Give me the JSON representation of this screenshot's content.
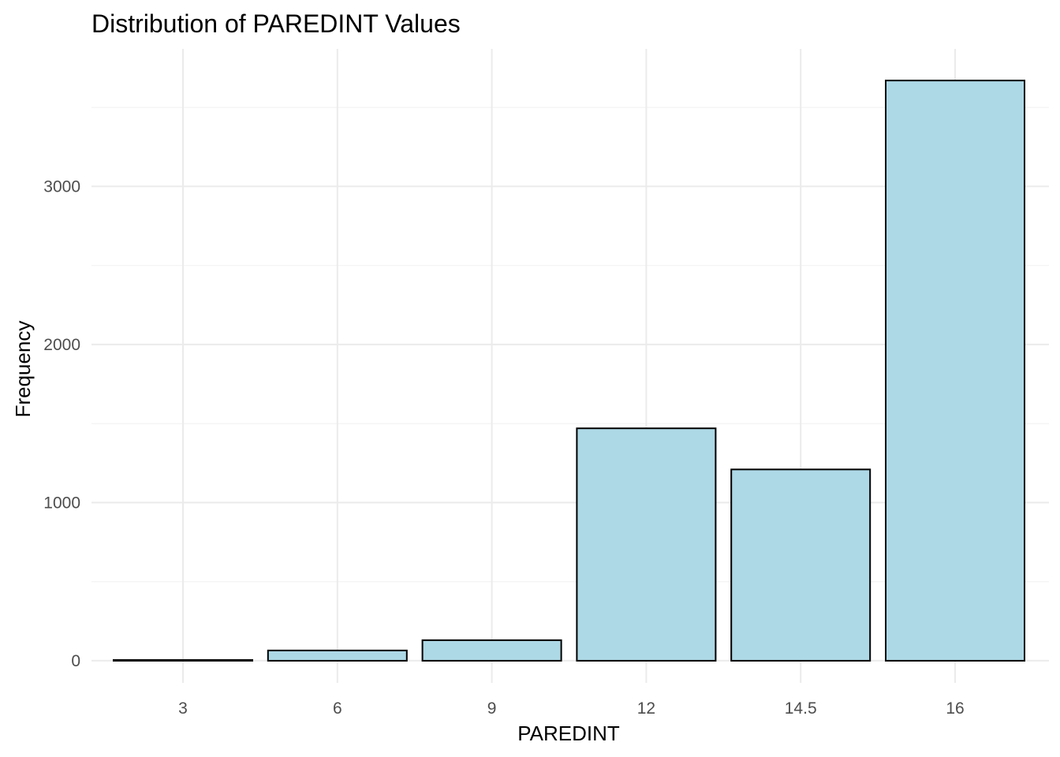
{
  "chart_data": {
    "type": "bar",
    "title": "Distribution of PAREDINT Values",
    "xlabel": "PAREDINT",
    "ylabel": "Frequency",
    "categories": [
      "3",
      "6",
      "9",
      "12",
      "14.5",
      "16"
    ],
    "values": [
      5,
      65,
      130,
      1470,
      1210,
      3670
    ],
    "ylim": [
      -140,
      3870
    ],
    "yticks": [
      0,
      1000,
      2000,
      3000
    ],
    "yticks_minor": [
      500,
      1500,
      2500,
      3500
    ],
    "grid": true,
    "legend": "none",
    "colors": {
      "bar_fill": "#add8e6",
      "bar_stroke": "#000000"
    }
  }
}
